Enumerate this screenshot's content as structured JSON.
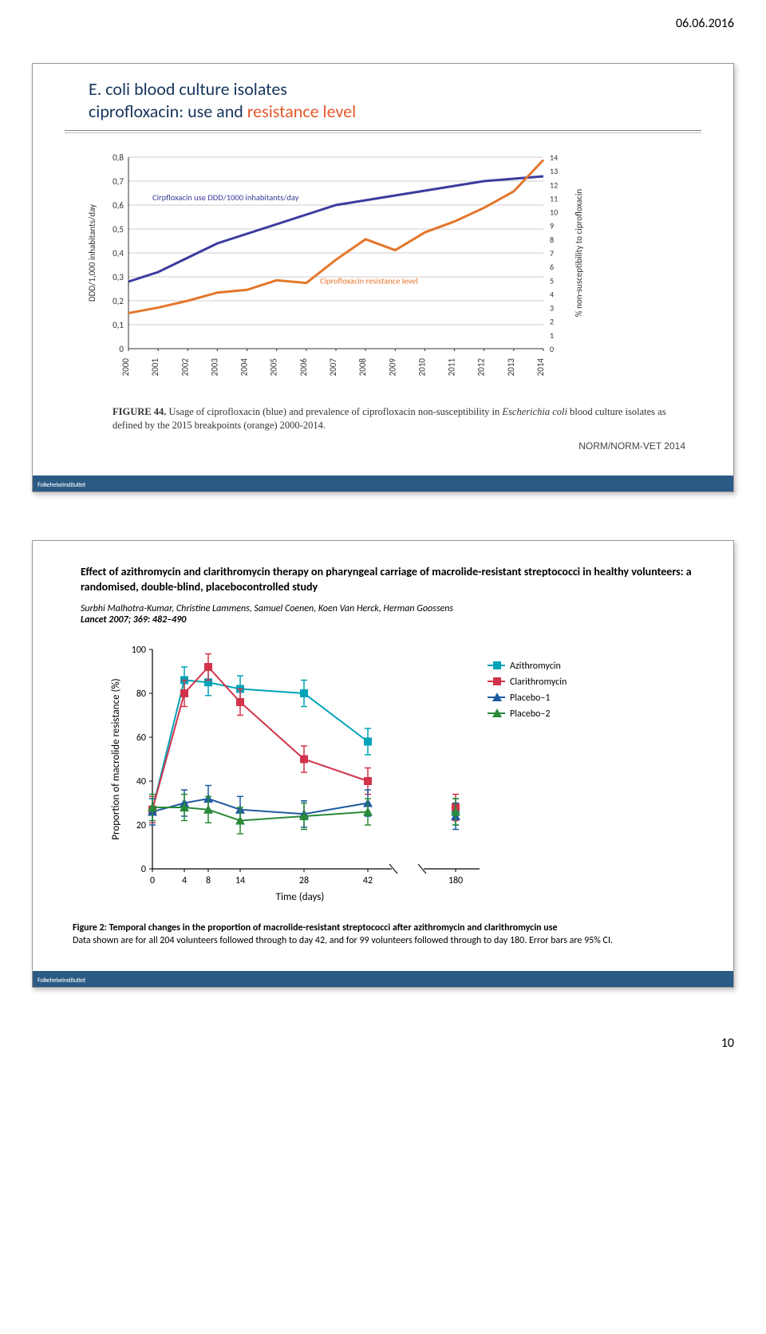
{
  "page": {
    "date": "06.06.2016",
    "number": "10"
  },
  "slide1": {
    "title_plain": "E. coli blood culture isolates\nciprofloxacin: use and ",
    "title_accent": "resistance level",
    "chart": {
      "y1_label": "DDD/1,000 inhabitants/day",
      "y2_label": "% non-susceptibility to ciprofloxacin",
      "y1_ticks": [
        "0",
        "0,1",
        "0,2",
        "0,3",
        "0,4",
        "0,5",
        "0,6",
        "0,7",
        "0,8"
      ],
      "y2_ticks": [
        "0",
        "1",
        "2",
        "3",
        "4",
        "5",
        "6",
        "7",
        "8",
        "9",
        "10",
        "11",
        "12",
        "13",
        "14"
      ],
      "x_ticks": [
        "2000",
        "2001",
        "2002",
        "2003",
        "2004",
        "2005",
        "2006",
        "2007",
        "2008",
        "2009",
        "2010",
        "2011",
        "2012",
        "2013",
        "2014"
      ],
      "series_use_label": "Cirpfloxacin use DDD/1000 inhabitants/day",
      "series_res_label": "Ciprofloxacin resistance level",
      "use_color": "#3b3b9e",
      "res_color": "#e4762b",
      "grid_color": "#bdbdbd",
      "use_values": [
        0.28,
        0.32,
        0.38,
        0.44,
        0.48,
        0.52,
        0.56,
        0.6,
        0.62,
        0.64,
        0.66,
        0.68,
        0.7,
        0.71,
        0.72
      ],
      "res_values": [
        2.6,
        3.0,
        3.5,
        4.1,
        4.3,
        5.0,
        4.8,
        6.5,
        8.0,
        7.2,
        8.5,
        9.3,
        10.3,
        11.5,
        13.8
      ]
    },
    "figure_caption_bold": "FIGURE 44.",
    "figure_caption_text": " Usage of ciprofloxacin (blue) and prevalence of ciprofloxacin non-susceptibility in ",
    "figure_caption_italic": "Escherichia coli",
    "figure_caption_tail": " blood culture isolates as defined by the 2015 breakpoints (orange) 2000-2014.",
    "norm_label": "NORM/NORM-VET 2014",
    "footer": "Folkehelseinstituttet"
  },
  "slide2": {
    "title": "Effect of azithromycin and clarithromycin therapy on pharyngeal carriage of macrolide-resistant streptococci in healthy volunteers: a randomised, double-blind, placebocontrolled study",
    "authors": "Surbhi Malhotra-Kumar, Christine Lammens, Samuel Coenen, Koen Van Herck, Herman Goossens",
    "journal": "Lancet 2007; 369: 482–490",
    "chart": {
      "y_label": "Proportion of macrolide resistance (%)",
      "x_label": "Time (days)",
      "y_ticks": [
        "0",
        "20",
        "40",
        "60",
        "80",
        "100"
      ],
      "x_ticks": [
        "0",
        "4",
        "8",
        "14",
        "28",
        "42",
        "180"
      ],
      "legend": [
        {
          "name": "Azithromycin",
          "color": "#00a3b8",
          "marker": "square"
        },
        {
          "name": "Clarithromycin",
          "color": "#d1344a",
          "marker": "square"
        },
        {
          "name": "Placebo–1",
          "color": "#1e5aa0",
          "marker": "triangle"
        },
        {
          "name": "Placebo–2",
          "color": "#2a8a3a",
          "marker": "triangle"
        }
      ],
      "azith": [
        27,
        86,
        85,
        82,
        80,
        58,
        26
      ],
      "clar": [
        27,
        80,
        92,
        76,
        50,
        40,
        28
      ],
      "plc1": [
        26,
        30,
        32,
        27,
        25,
        30,
        24
      ],
      "plc2": [
        28,
        28,
        27,
        22,
        24,
        26,
        26
      ],
      "err": 6,
      "axis_color": "#000"
    },
    "fig_caption_bold": "Figure 2: Temporal changes in the proportion of macrolide-resistant streptococci after azithromycin and clarithromycin use",
    "fig_caption_text": "Data shown are for all 204 volunteers followed through to day 42, and for 99 volunteers followed through to day 180. Error bars are 95% CI.",
    "footer": "Folkehelseinstituttet"
  }
}
